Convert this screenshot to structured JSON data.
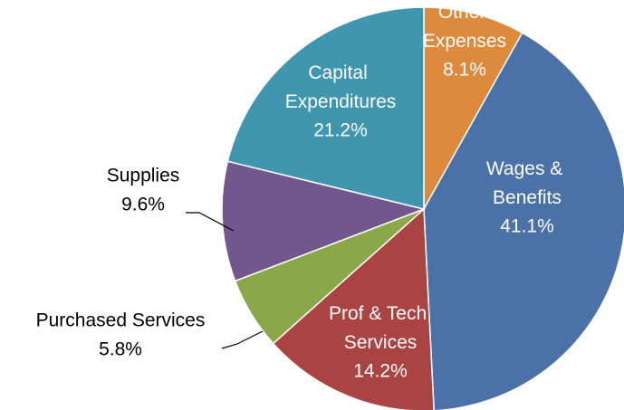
{
  "chart_data": {
    "type": "pie",
    "categories": [
      "Other Expenses",
      "Wages & Benefits",
      "Prof & Tech Services",
      "Purchased  Services",
      "Supplies",
      "Capital Expenditures"
    ],
    "values": [
      8.1,
      41.1,
      14.2,
      5.8,
      9.6,
      21.2
    ],
    "value_labels": [
      "8.1%",
      "41.1%",
      "14.2%",
      "5.8%",
      "9.6%",
      "21.2%"
    ],
    "colors": [
      "#de8a3d",
      "#4a72a8",
      "#a94442",
      "#8aa74a",
      "#72578e",
      "#3f96ae"
    ]
  }
}
